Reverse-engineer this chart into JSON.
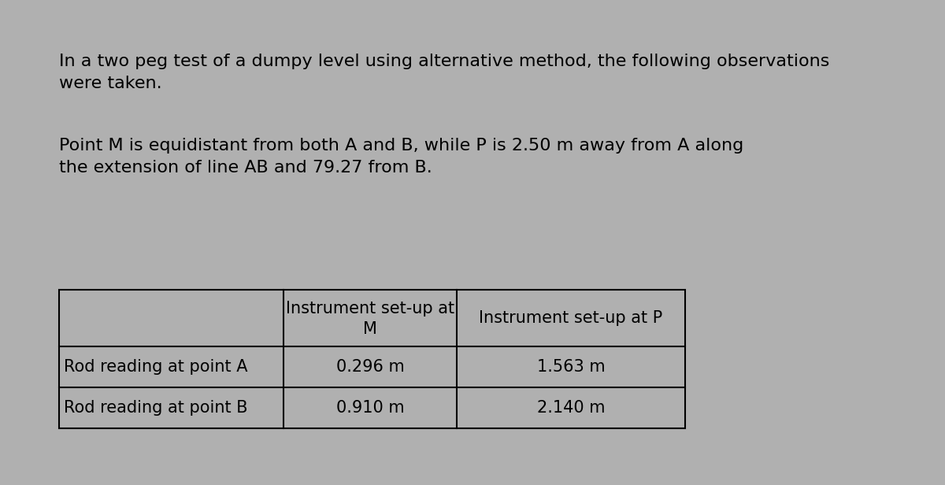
{
  "background_color": "#b0b0b0",
  "text_color": "#000000",
  "intro_line1": "In a two peg test of a dumpy level using alternative method, the following observations",
  "intro_line2": "were taken.",
  "desc_line1": "Point M is equidistant from both A and B, while P is 2.50 m away from A along",
  "desc_line2": "the extension of line AB and 79.27 from B.",
  "table": {
    "col_headers": [
      "",
      "Instrument set-up at\nM",
      "Instrument set-up at P"
    ],
    "rows": [
      [
        "Rod reading at point A",
        "0.296 m",
        "1.563 m"
      ],
      [
        "Rod reading at point B",
        "0.910 m",
        "2.140 m"
      ]
    ]
  },
  "font_size_text": 16,
  "font_size_table": 15,
  "font_family": "DejaVu Sans"
}
